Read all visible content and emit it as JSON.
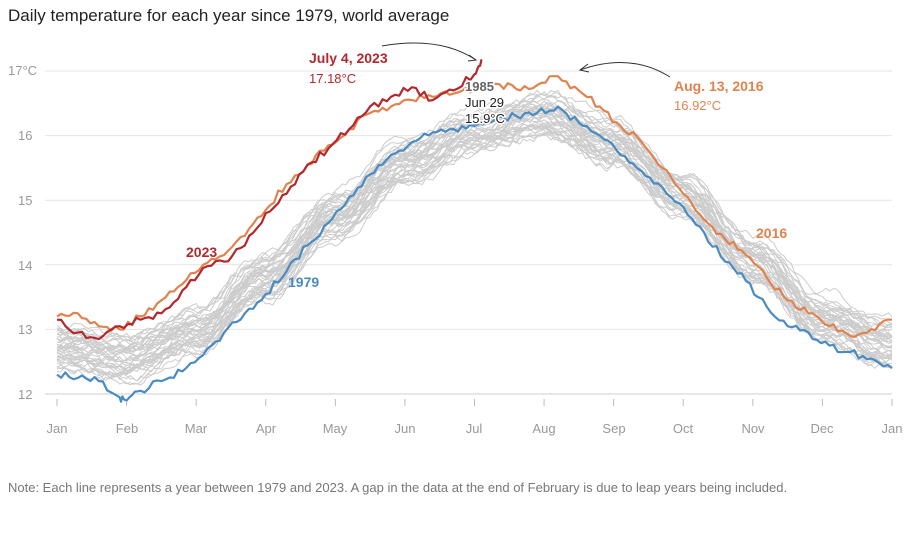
{
  "chart_data": {
    "type": "line",
    "title": "Daily temperature for each year since 1979, world average",
    "note": "Note: Each line represents a year between 1979 and 2023. A gap in the data at the end of February is due to leap years being included.",
    "x_ticks": [
      "Jan",
      "Feb",
      "Mar",
      "Apr",
      "May",
      "Jun",
      "Jul",
      "Aug",
      "Sep",
      "Oct",
      "Nov",
      "Dec",
      "Jan"
    ],
    "y_ticks": [
      "17°C",
      "16",
      "15",
      "14",
      "13",
      "12"
    ],
    "ylim": [
      11.85,
      17.25
    ],
    "grid": true,
    "colors": {
      "y2023": "#b3282d",
      "y2016": "#e0834f",
      "y1979": "#4a8bc2",
      "other_years": "#cccccc",
      "arrow": "#333333"
    },
    "series": [
      {
        "name": "2023",
        "x": [
          0,
          0.3,
          0.6,
          0.9,
          1.2,
          1.5,
          1.8,
          2.1,
          2.4,
          2.7,
          3.0,
          3.3,
          3.6,
          3.9,
          4.2,
          4.5,
          4.8,
          5.1,
          5.4,
          5.7,
          6.0,
          6.1
        ],
        "values": [
          13.15,
          12.95,
          12.85,
          13.05,
          13.15,
          13.25,
          13.6,
          13.95,
          14.05,
          14.3,
          14.8,
          15.1,
          15.55,
          15.8,
          16.1,
          16.45,
          16.6,
          16.75,
          16.55,
          16.7,
          16.95,
          17.18
        ]
      },
      {
        "name": "2016",
        "x": [
          0,
          0.3,
          0.6,
          0.9,
          1.2,
          1.5,
          1.8,
          2.1,
          2.4,
          2.7,
          3.0,
          3.3,
          3.6,
          3.9,
          4.2,
          4.5,
          4.8,
          5.1,
          5.4,
          5.7,
          6.0,
          6.3,
          6.6,
          6.9,
          7.2,
          7.5,
          7.8,
          8.1,
          8.4,
          8.7,
          9.0,
          9.3,
          9.6,
          9.9,
          10.2,
          10.5,
          10.8,
          11.1,
          11.4,
          11.7,
          12.0
        ],
        "values": [
          13.2,
          13.25,
          13.05,
          13.0,
          13.2,
          13.45,
          13.7,
          14.0,
          14.15,
          14.45,
          14.85,
          15.25,
          15.55,
          15.85,
          16.1,
          16.35,
          16.45,
          16.55,
          16.6,
          16.65,
          16.7,
          16.8,
          16.72,
          16.78,
          16.92,
          16.7,
          16.45,
          16.15,
          15.9,
          15.5,
          15.1,
          14.7,
          14.4,
          14.15,
          13.8,
          13.45,
          13.25,
          13.05,
          12.9,
          13.0,
          13.15
        ]
      },
      {
        "name": "1979",
        "x": [
          0,
          0.3,
          0.6,
          0.9,
          1.0,
          1.2,
          1.5,
          1.8,
          2.1,
          2.4,
          2.7,
          3.0,
          3.3,
          3.6,
          3.9,
          4.2,
          4.5,
          4.8,
          5.1,
          5.4,
          5.7,
          6.0,
          6.3,
          6.6,
          6.9,
          7.2,
          7.5,
          7.8,
          8.1,
          8.4,
          8.7,
          9.0,
          9.3,
          9.6,
          9.9,
          10.2,
          10.5,
          10.8,
          11.1,
          11.4,
          11.7,
          12.0
        ],
        "values": [
          12.3,
          12.25,
          12.2,
          11.95,
          11.9,
          12.05,
          12.2,
          12.35,
          12.6,
          12.95,
          13.25,
          13.55,
          13.9,
          14.3,
          14.65,
          15.05,
          15.4,
          15.7,
          15.9,
          16.05,
          16.1,
          16.15,
          16.25,
          16.3,
          16.35,
          16.45,
          16.2,
          16.0,
          15.7,
          15.45,
          15.2,
          14.9,
          14.5,
          14.05,
          13.75,
          13.35,
          13.05,
          12.95,
          12.75,
          12.65,
          12.55,
          12.4
        ]
      }
    ],
    "annotations": {
      "july4": {
        "title": "July 4, 2023",
        "value": "17.18°C"
      },
      "aug13": {
        "title": "Aug. 13, 2016",
        "value": "16.92°C"
      },
      "label2016": "2016",
      "label2023": "2023",
      "label1979": "1979",
      "label1985": "1985",
      "jun29": {
        "date": "Jun 29",
        "value": "15.9°C"
      }
    }
  }
}
